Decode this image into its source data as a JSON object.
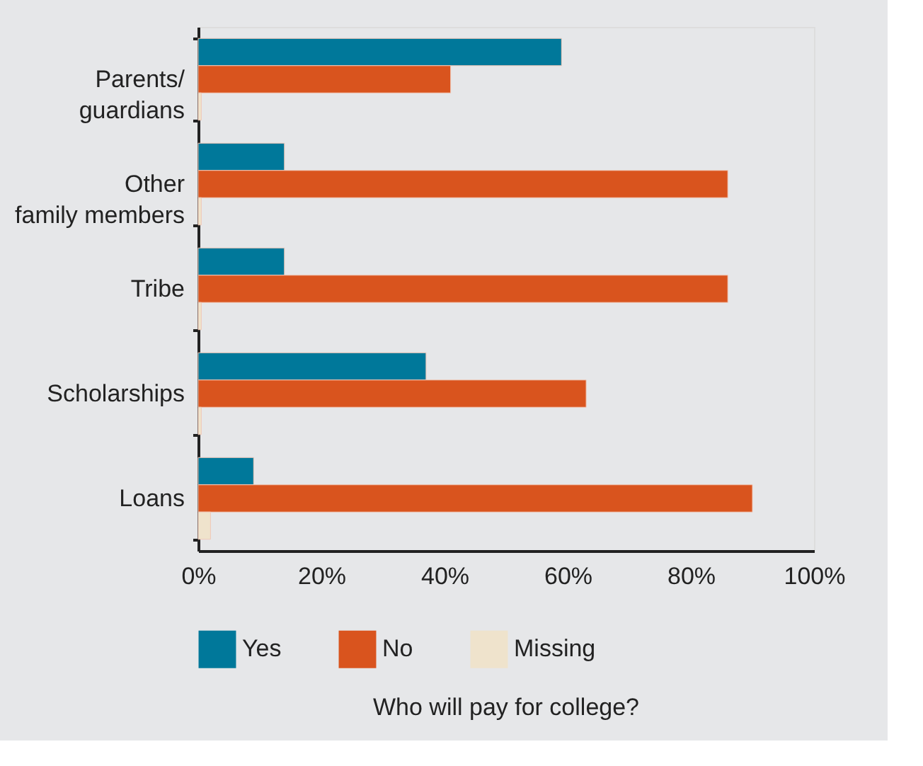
{
  "chart_data": {
    "type": "bar",
    "orientation": "horizontal",
    "title": "Who will pay for college?",
    "categories": [
      "Parents/\nguardians",
      "Other\nfamily members",
      "Tribe",
      "Scholarships",
      "Loans"
    ],
    "series": [
      {
        "name": "Yes",
        "color": "#00789a",
        "values": [
          59,
          14,
          14,
          37,
          9
        ]
      },
      {
        "name": "No",
        "color": "#d9541e",
        "values": [
          41,
          86,
          86,
          63,
          90
        ]
      },
      {
        "name": "Missing",
        "color": "#efe3cc",
        "values": [
          0.5,
          0.5,
          0.5,
          0.5,
          2
        ]
      }
    ],
    "xlim": [
      0,
      100
    ],
    "xticks": [
      {
        "value": 0,
        "label": "0%"
      },
      {
        "value": 20,
        "label": "20%"
      },
      {
        "value": 40,
        "label": "40%"
      },
      {
        "value": 60,
        "label": "60%"
      },
      {
        "value": 80,
        "label": "80%"
      },
      {
        "value": 100,
        "label": "100%"
      }
    ],
    "grid": false,
    "legend": "bottom"
  }
}
